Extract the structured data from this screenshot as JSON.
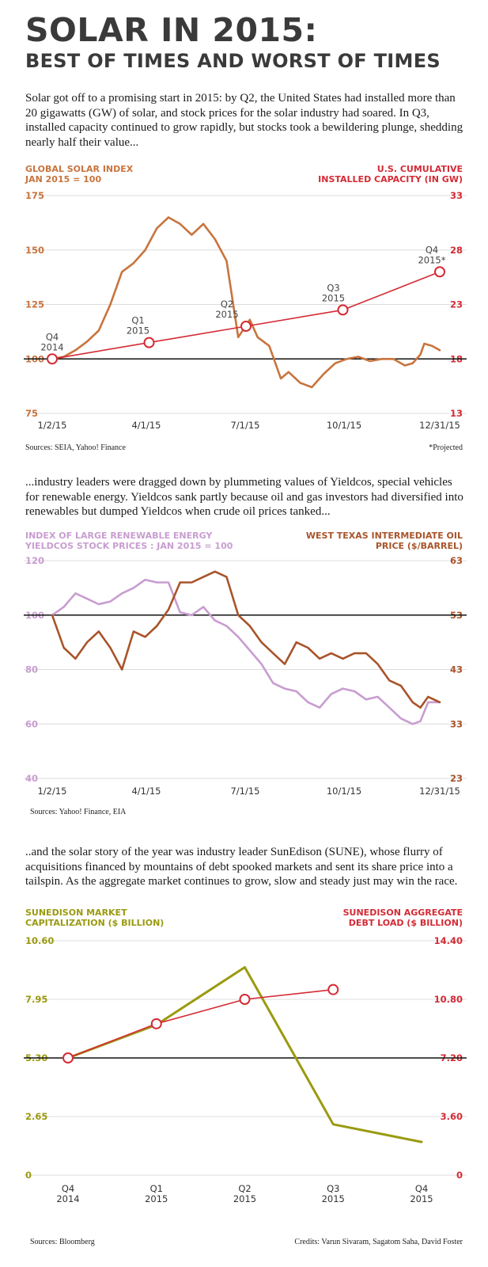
{
  "header": {
    "title": "SOLAR IN 2015:",
    "subtitle": "BEST OF TIMES AND WORST OF TIMES"
  },
  "intro1": "Solar got off to a promising start in 2015: by Q2, the United States had installed more than 20 gigawatts (GW) of solar, and stock prices for the solar industry had soared. In Q3, installed capacity continued to grow rapidly, but stocks took a bewildering plunge, shedding nearly half their value...",
  "intro2": "...industry leaders were dragged down by plummeting values of Yieldcos, special vehicles for renewable energy. Yieldcos sank partly because oil and gas investors had diversified into renewables but dumped Yieldcos when crude oil prices tanked...",
  "intro3": "..and the solar story of the year was industry leader SunEdison (SUNE), whose flurry of acquisitions financed by mountains of debt spooked markets and sent its share price into a tailspin. As the aggregate market continues to grow, slow and steady just may win the race.",
  "colors": {
    "brown": "#c8743e",
    "red": "#d42b35",
    "purple": "#c89dd0",
    "darkbrown": "#a8542a",
    "olive": "#9a9a10"
  },
  "chart1": {
    "left_title_1": "GLOBAL SOLAR INDEX",
    "left_title_2": "JAN 2015 = 100",
    "right_title_1": "U.S. CUMULATIVE",
    "right_title_2": "INSTALLED CAPACITY (IN GW)",
    "sources": "Sources: SEIA, Yahoo! Finance",
    "projected_note": "*Projected"
  },
  "chart2": {
    "left_title_1": "INDEX OF LARGE RENEWABLE ENERGY",
    "left_title_2": "YIELDCOS STOCK PRICES : JAN 2015 = 100",
    "right_title_1": "WEST TEXAS INTERMEDIATE OIL",
    "right_title_2": "PRICE ($/BARREL)",
    "sources": "Sources: Yahoo! Finance, EIA"
  },
  "chart3": {
    "left_title_1": "SUNEDISON MARKET",
    "left_title_2": "CAPITALIZATION ($ BILLION)",
    "right_title_1": "SUNEDISON AGGREGATE",
    "right_title_2": "DEBT LOAD ($ BILLION)",
    "sources": "Sources: Bloomberg",
    "credits": "Credits: Varun Sivaram, Sagatom Saha, David Foster"
  },
  "chart_data": [
    {
      "type": "line",
      "x_ticks": [
        "1/2/15",
        "4/1/15",
        "7/1/15",
        "10/1/15",
        "12/31/15"
      ],
      "y_left_ticks": [
        75,
        100,
        125,
        150,
        175
      ],
      "y_right_ticks": [
        13,
        18,
        23,
        28,
        33
      ],
      "ylim_left": [
        75,
        175
      ],
      "ylim_right": [
        13,
        33
      ],
      "reference_line": 100,
      "series": [
        {
          "axis": "left",
          "x_frac": [
            0,
            0.03,
            0.06,
            0.09,
            0.12,
            0.15,
            0.18,
            0.21,
            0.24,
            0.27,
            0.3,
            0.33,
            0.36,
            0.39,
            0.42,
            0.45,
            0.48,
            0.51,
            0.53,
            0.56,
            0.59,
            0.61,
            0.64,
            0.67,
            0.7,
            0.73,
            0.76,
            0.79,
            0.82,
            0.85,
            0.88,
            0.91,
            0.93,
            0.95,
            0.96,
            0.98,
            1.0
          ],
          "values": [
            100,
            101,
            104,
            108,
            113,
            125,
            140,
            144,
            150,
            160,
            165,
            162,
            157,
            162,
            155,
            145,
            110,
            118,
            110,
            106,
            91,
            94,
            89,
            87,
            93,
            98,
            100,
            101,
            99,
            100,
            100,
            97,
            98,
            102,
            107,
            106,
            104
          ]
        },
        {
          "axis": "right",
          "labels": [
            "Q4 2014",
            "Q1 2015",
            "Q2 2015",
            "Q3 2015",
            "Q4 2015*"
          ],
          "x_frac": [
            0,
            0.25,
            0.5,
            0.75,
            1.0
          ],
          "values": [
            18,
            19.5,
            21,
            22.5,
            26
          ]
        }
      ]
    },
    {
      "type": "line",
      "x_ticks": [
        "1/2/15",
        "4/1/15",
        "7/1/15",
        "10/1/15",
        "12/31/15"
      ],
      "y_left_ticks": [
        40,
        60,
        80,
        100,
        120
      ],
      "y_right_ticks": [
        23,
        33,
        43,
        53,
        63
      ],
      "ylim_left": [
        40,
        120
      ],
      "ylim_right": [
        23,
        63
      ],
      "reference_line": 100,
      "series": [
        {
          "axis": "left",
          "x_frac": [
            0,
            0.03,
            0.06,
            0.09,
            0.12,
            0.15,
            0.18,
            0.21,
            0.24,
            0.27,
            0.3,
            0.33,
            0.36,
            0.39,
            0.42,
            0.45,
            0.48,
            0.51,
            0.54,
            0.57,
            0.6,
            0.63,
            0.66,
            0.69,
            0.72,
            0.75,
            0.78,
            0.81,
            0.84,
            0.87,
            0.9,
            0.93,
            0.95,
            0.97,
            1.0
          ],
          "values": [
            100,
            103,
            108,
            106,
            104,
            105,
            108,
            110,
            113,
            112,
            112,
            101,
            100,
            103,
            98,
            96,
            92,
            87,
            82,
            75,
            73,
            72,
            68,
            66,
            71,
            73,
            72,
            69,
            70,
            66,
            62,
            60,
            61,
            68,
            68
          ]
        },
        {
          "axis": "right",
          "x_frac": [
            0,
            0.03,
            0.06,
            0.09,
            0.12,
            0.15,
            0.18,
            0.21,
            0.24,
            0.27,
            0.3,
            0.33,
            0.36,
            0.39,
            0.42,
            0.45,
            0.48,
            0.51,
            0.54,
            0.57,
            0.6,
            0.63,
            0.66,
            0.69,
            0.72,
            0.75,
            0.78,
            0.81,
            0.84,
            0.87,
            0.9,
            0.93,
            0.95,
            0.97,
            1.0
          ],
          "values": [
            53,
            47,
            45,
            48,
            50,
            47,
            43,
            50,
            49,
            51,
            54,
            59,
            59,
            60,
            61,
            60,
            53,
            51,
            48,
            46,
            44,
            48,
            47,
            45,
            46,
            45,
            46,
            46,
            44,
            41,
            40,
            37,
            36,
            38,
            37
          ]
        }
      ]
    },
    {
      "type": "line",
      "x_ticks": [
        "Q4 2014",
        "Q1 2015",
        "Q2 2015",
        "Q3 2015",
        "Q4 2015"
      ],
      "y_left_ticks": [
        0,
        2.65,
        5.3,
        7.95,
        10.6
      ],
      "y_right_ticks": [
        0,
        3.6,
        7.2,
        10.8,
        14.4
      ],
      "ylim_left": [
        0,
        10.6
      ],
      "ylim_right": [
        0,
        14.4
      ],
      "reference_line": 5.3,
      "series": [
        {
          "axis": "left",
          "values": [
            5.3,
            6.8,
            9.4,
            2.3,
            1.5
          ]
        },
        {
          "axis": "right",
          "values": [
            7.2,
            9.3,
            10.8,
            11.4
          ]
        }
      ]
    }
  ]
}
